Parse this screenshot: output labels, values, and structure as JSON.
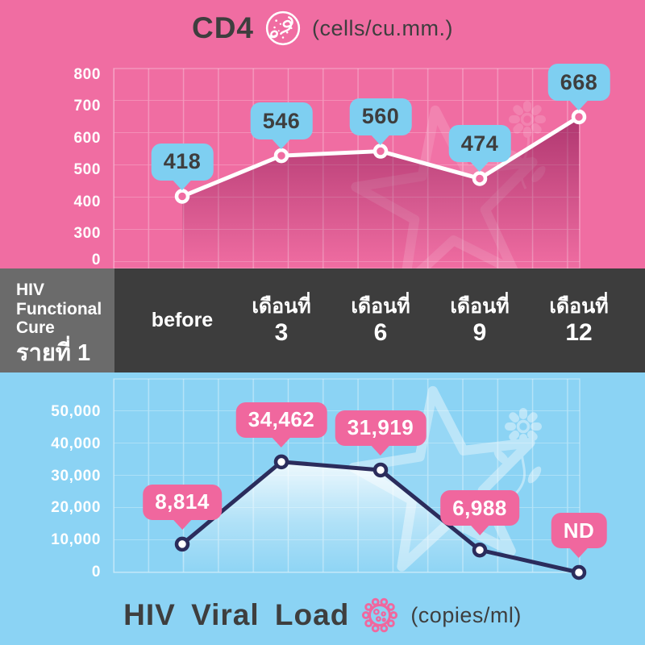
{
  "cd4": {
    "title": "CD4",
    "unit": "(cells/cu.mm.)",
    "icon": "cd4-cell-icon"
  },
  "viral": {
    "title": "HIV Viral Load",
    "unit": "(copies/ml)",
    "icon": "virus-icon"
  },
  "timeline": {
    "header_lines": [
      "HIV",
      "Functional",
      "Cure"
    ],
    "case_label": "รายที่ 1",
    "columns": [
      {
        "line1": "before",
        "line2": ""
      },
      {
        "line1": "เดือนที่",
        "line2": "3"
      },
      {
        "line1": "เดือนที่",
        "line2": "6"
      },
      {
        "line1": "เดือนที่",
        "line2": "9"
      },
      {
        "line1": "เดือนที่",
        "line2": "12"
      }
    ]
  },
  "chart_data": [
    {
      "type": "line",
      "name": "CD4",
      "title": "CD4",
      "unit": "cells/cu.mm.",
      "categories": [
        "before",
        "เดือนที่ 3",
        "เดือนที่ 6",
        "เดือนที่ 9",
        "เดือนที่ 12"
      ],
      "values": [
        418,
        546,
        560,
        474,
        668
      ],
      "point_labels": [
        "418",
        "546",
        "560",
        "474",
        "668"
      ],
      "y_ticks": [
        "800",
        "700",
        "600",
        "500",
        "400",
        "300",
        "0"
      ],
      "ylim": [
        0,
        800
      ],
      "grid": true,
      "legend": "none"
    },
    {
      "type": "line",
      "name": "HIV Viral Load",
      "title": "HIV Viral Load",
      "unit": "copies/ml",
      "categories": [
        "before",
        "เดือนที่ 3",
        "เดือนที่ 6",
        "เดือนที่ 9",
        "เดือนที่ 12"
      ],
      "values": [
        8814,
        34462,
        31919,
        6988,
        0
      ],
      "point_labels": [
        "8,814",
        "34,462",
        "31,919",
        "6,988",
        "ND"
      ],
      "y_ticks": [
        "50,000",
        "40,000",
        "30,000",
        "20,000",
        "10,000",
        "0"
      ],
      "ylim": [
        0,
        50000
      ],
      "grid": true,
      "legend": "none"
    }
  ],
  "colors": {
    "pink_bg": "#F06DA2",
    "blue_bg": "#8BD3F4",
    "band_bg": "#3D3D3D",
    "case_box_bg": "#6B6B6B",
    "bubble_blue": "#7ECFF1",
    "bubble_pink": "#F0679E",
    "line_white": "#FFFFFF",
    "line_navy": "#2B2C5C",
    "ink": "#3E3E3E",
    "shadow_magenta": "#7A0A46"
  }
}
